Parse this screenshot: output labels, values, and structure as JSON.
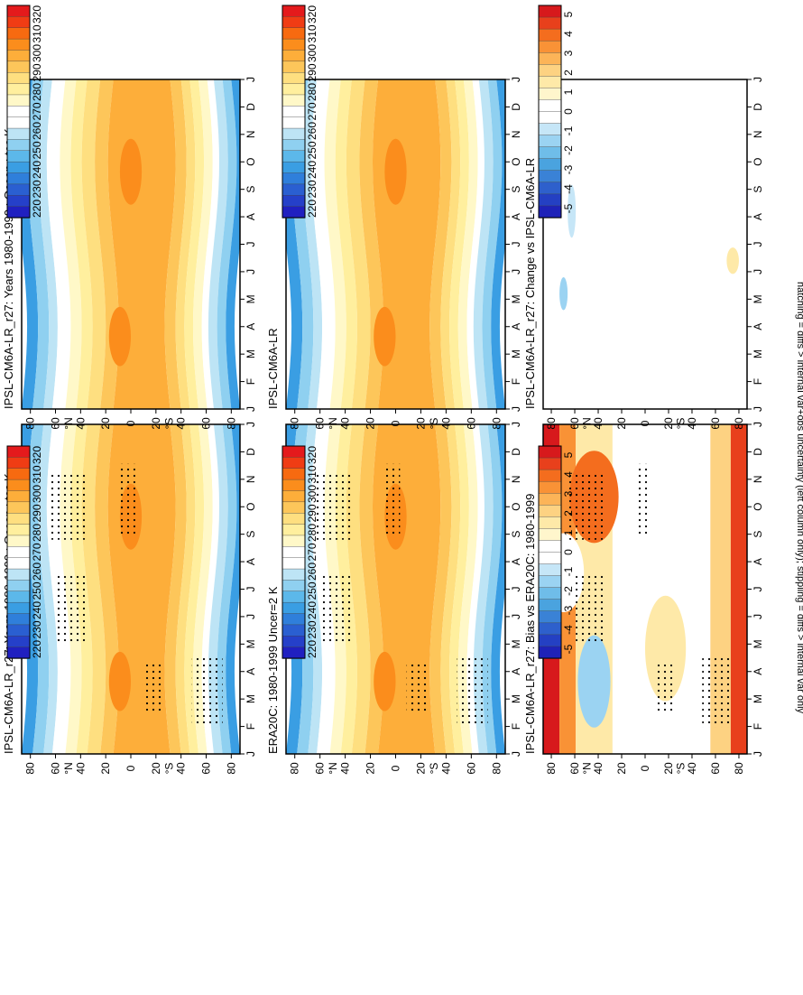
{
  "figure": {
    "footnote": "hatching = diffs > internal var+obs uncertainty (left column only); stippling = diffs > internal var only"
  },
  "scales": {
    "abs": {
      "labels": [
        "320",
        "310",
        "300",
        "290",
        "280",
        "270",
        "260",
        "250",
        "240",
        "230",
        "220"
      ],
      "colors": [
        "#e41a1c",
        "#f03c14",
        "#f76a10",
        "#fb8d1c",
        "#fdae3a",
        "#fdc65a",
        "#fedf80",
        "#ffef9e",
        "#fff8c8",
        "#ffffff",
        "#ffffff",
        "#bde4f5",
        "#8fd0f0",
        "#5cb8ea",
        "#3a9ee3",
        "#2f7fdb",
        "#2a5fd1",
        "#2540c9",
        "#2020c0"
      ]
    },
    "diff": {
      "labels": [
        "5",
        "4",
        "3",
        "2",
        "1",
        "0",
        "-1",
        "-2",
        "-3",
        "-4",
        "-5"
      ],
      "colors": [
        "#d7191c",
        "#e8401c",
        "#f46d1e",
        "#f99236",
        "#fcb458",
        "#fdd282",
        "#fee9a8",
        "#fff6cc",
        "#ffffff",
        "#ffffff",
        "#c6e6f7",
        "#9bd3f2",
        "#6fbde9",
        "#4aa3df",
        "#3a82d6",
        "#2e60cc",
        "#2440c3",
        "#1e22b8"
      ]
    }
  },
  "chart_data": [
    {
      "type": "heatmap",
      "title": "IPSL-CM6A-LR_r27: Years 1980-1999 : Ocean : tas K",
      "x": [
        "J",
        "F",
        "M",
        "A",
        "M",
        "J",
        "J",
        "A",
        "S",
        "O",
        "N",
        "D",
        "J"
      ],
      "y": [
        "80",
        "60",
        "40",
        "20",
        "0",
        "20",
        "40",
        "60",
        "80"
      ],
      "y_hemisphere_labels": [
        "°N",
        "°S"
      ],
      "colorbar": "abs"
    },
    {
      "type": "heatmap",
      "title": "IPSL-CM6A-LR_r27: Years 1980-1999 : Ocean : tas K",
      "x": [
        "J",
        "F",
        "M",
        "A",
        "M",
        "J",
        "J",
        "A",
        "S",
        "O",
        "N",
        "D",
        "J"
      ],
      "y": [
        "80",
        "60",
        "40",
        "20",
        "0",
        "20",
        "40",
        "60",
        "80"
      ],
      "y_hemisphere_labels": [
        "°N",
        "°S"
      ],
      "colorbar": "abs"
    },
    {
      "type": "heatmap",
      "title": "ERA20C: 1980-1999 Uncer=2 K",
      "x": [
        "J",
        "F",
        "M",
        "A",
        "M",
        "J",
        "J",
        "A",
        "S",
        "O",
        "N",
        "D",
        "J"
      ],
      "y": [
        "80",
        "60",
        "40",
        "20",
        "0",
        "20",
        "40",
        "60",
        "80"
      ],
      "y_hemisphere_labels": [
        "°N",
        "°S"
      ],
      "colorbar": "abs"
    },
    {
      "type": "heatmap",
      "title": "IPSL-CM6A-LR",
      "x": [
        "J",
        "F",
        "M",
        "A",
        "M",
        "J",
        "J",
        "A",
        "S",
        "O",
        "N",
        "D",
        "J"
      ],
      "y": [
        "80",
        "60",
        "40",
        "20",
        "0",
        "20",
        "40",
        "60",
        "80"
      ],
      "y_hemisphere_labels": [
        "°N",
        "°S"
      ],
      "colorbar": "abs"
    },
    {
      "type": "heatmap",
      "title": "IPSL-CM6A-LR_r27: Bias vs ERA20C: 1980-1999",
      "x": [
        "J",
        "F",
        "M",
        "A",
        "M",
        "J",
        "J",
        "A",
        "S",
        "O",
        "N",
        "D",
        "J"
      ],
      "y": [
        "80",
        "60",
        "40",
        "20",
        "0",
        "20",
        "40",
        "60",
        "80"
      ],
      "y_hemisphere_labels": [
        "°N",
        "°S"
      ],
      "colorbar": "diff"
    },
    {
      "type": "heatmap",
      "title": "IPSL-CM6A-LR_r27: Change vs IPSL-CM6A-LR",
      "x": [
        "J",
        "F",
        "M",
        "A",
        "M",
        "J",
        "J",
        "A",
        "S",
        "O",
        "N",
        "D",
        "J"
      ],
      "y": [
        "80",
        "60",
        "40",
        "20",
        "0",
        "20",
        "40",
        "60",
        "80"
      ],
      "y_hemisphere_labels": [
        "°N",
        "°S"
      ],
      "colorbar": "diff"
    }
  ]
}
